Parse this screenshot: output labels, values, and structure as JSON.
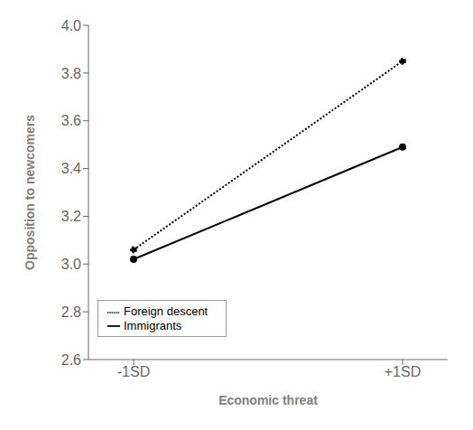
{
  "chart_data": {
    "type": "line",
    "x_label": "Economic threat",
    "y_label": "Opposition to newcomers",
    "categories": [
      "-1SD",
      "+1SD"
    ],
    "series": [
      {
        "name": "Immigrants",
        "color": "#000000",
        "line_style": "solid",
        "marker": "circle",
        "values": [
          3.02,
          3.49
        ]
      },
      {
        "name": "Foreign descent",
        "color": "#000000",
        "line_style": "dotted",
        "marker": "circle",
        "values": [
          3.06,
          3.85
        ]
      }
    ],
    "ylim": [
      2.6,
      4.0
    ],
    "yticks": [
      2.6,
      2.8,
      {
        "value": 3.0,
        "label": "3.0"
      },
      3.2,
      3.4,
      3.6,
      3.8,
      {
        "value": 4.0,
        "label": "4.0"
      }
    ],
    "grid": false,
    "legend": "lower left"
  }
}
